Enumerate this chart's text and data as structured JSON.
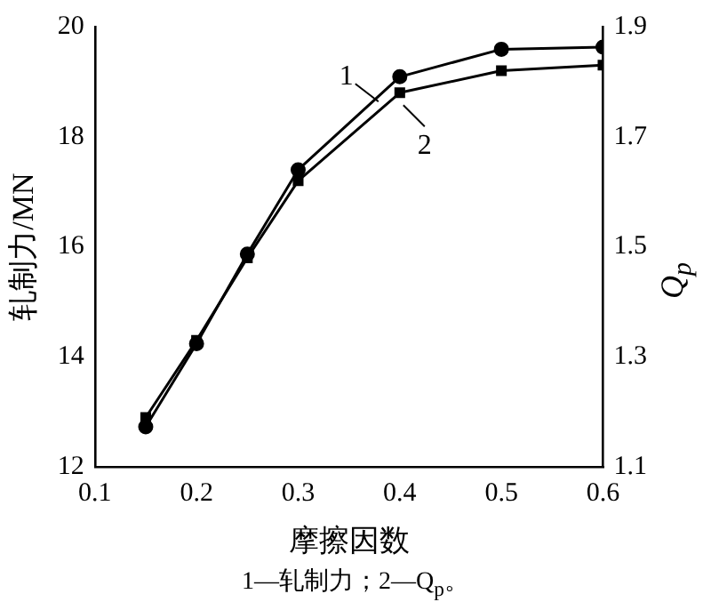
{
  "chart_data": {
    "type": "line",
    "xlabel": "摩擦因数",
    "ylabel": "轧制力/MN",
    "y2label": "Q$_{p}$",
    "x": [
      0.15,
      0.2,
      0.25,
      0.3,
      0.4,
      0.5,
      0.6
    ],
    "xlim": [
      0.1,
      0.6
    ],
    "xticks": [
      0.1,
      0.2,
      0.3,
      0.4,
      0.5,
      0.6
    ],
    "ylim": [
      12,
      20
    ],
    "yticks": [
      12,
      14,
      16,
      18,
      20
    ],
    "y2lim": [
      1.1,
      1.9
    ],
    "y2ticks": [
      1.1,
      1.3,
      1.5,
      1.7,
      1.9
    ],
    "series": [
      {
        "name": "1",
        "color": "#000000",
        "marker": "circle",
        "values": [
          12.73,
          14.24,
          15.87,
          17.4,
          19.09,
          19.59,
          19.63
        ]
      },
      {
        "name": "2",
        "color": "#000000",
        "marker": "square",
        "axis": "y2",
        "values": [
          1.19,
          1.33,
          1.48,
          1.62,
          1.78,
          1.82,
          1.83
        ]
      }
    ],
    "grid": false,
    "legend": "top",
    "line_style": "solid",
    "annotations": [
      "1—轧制力；2—Q$_{p}$。"
    ]
  }
}
